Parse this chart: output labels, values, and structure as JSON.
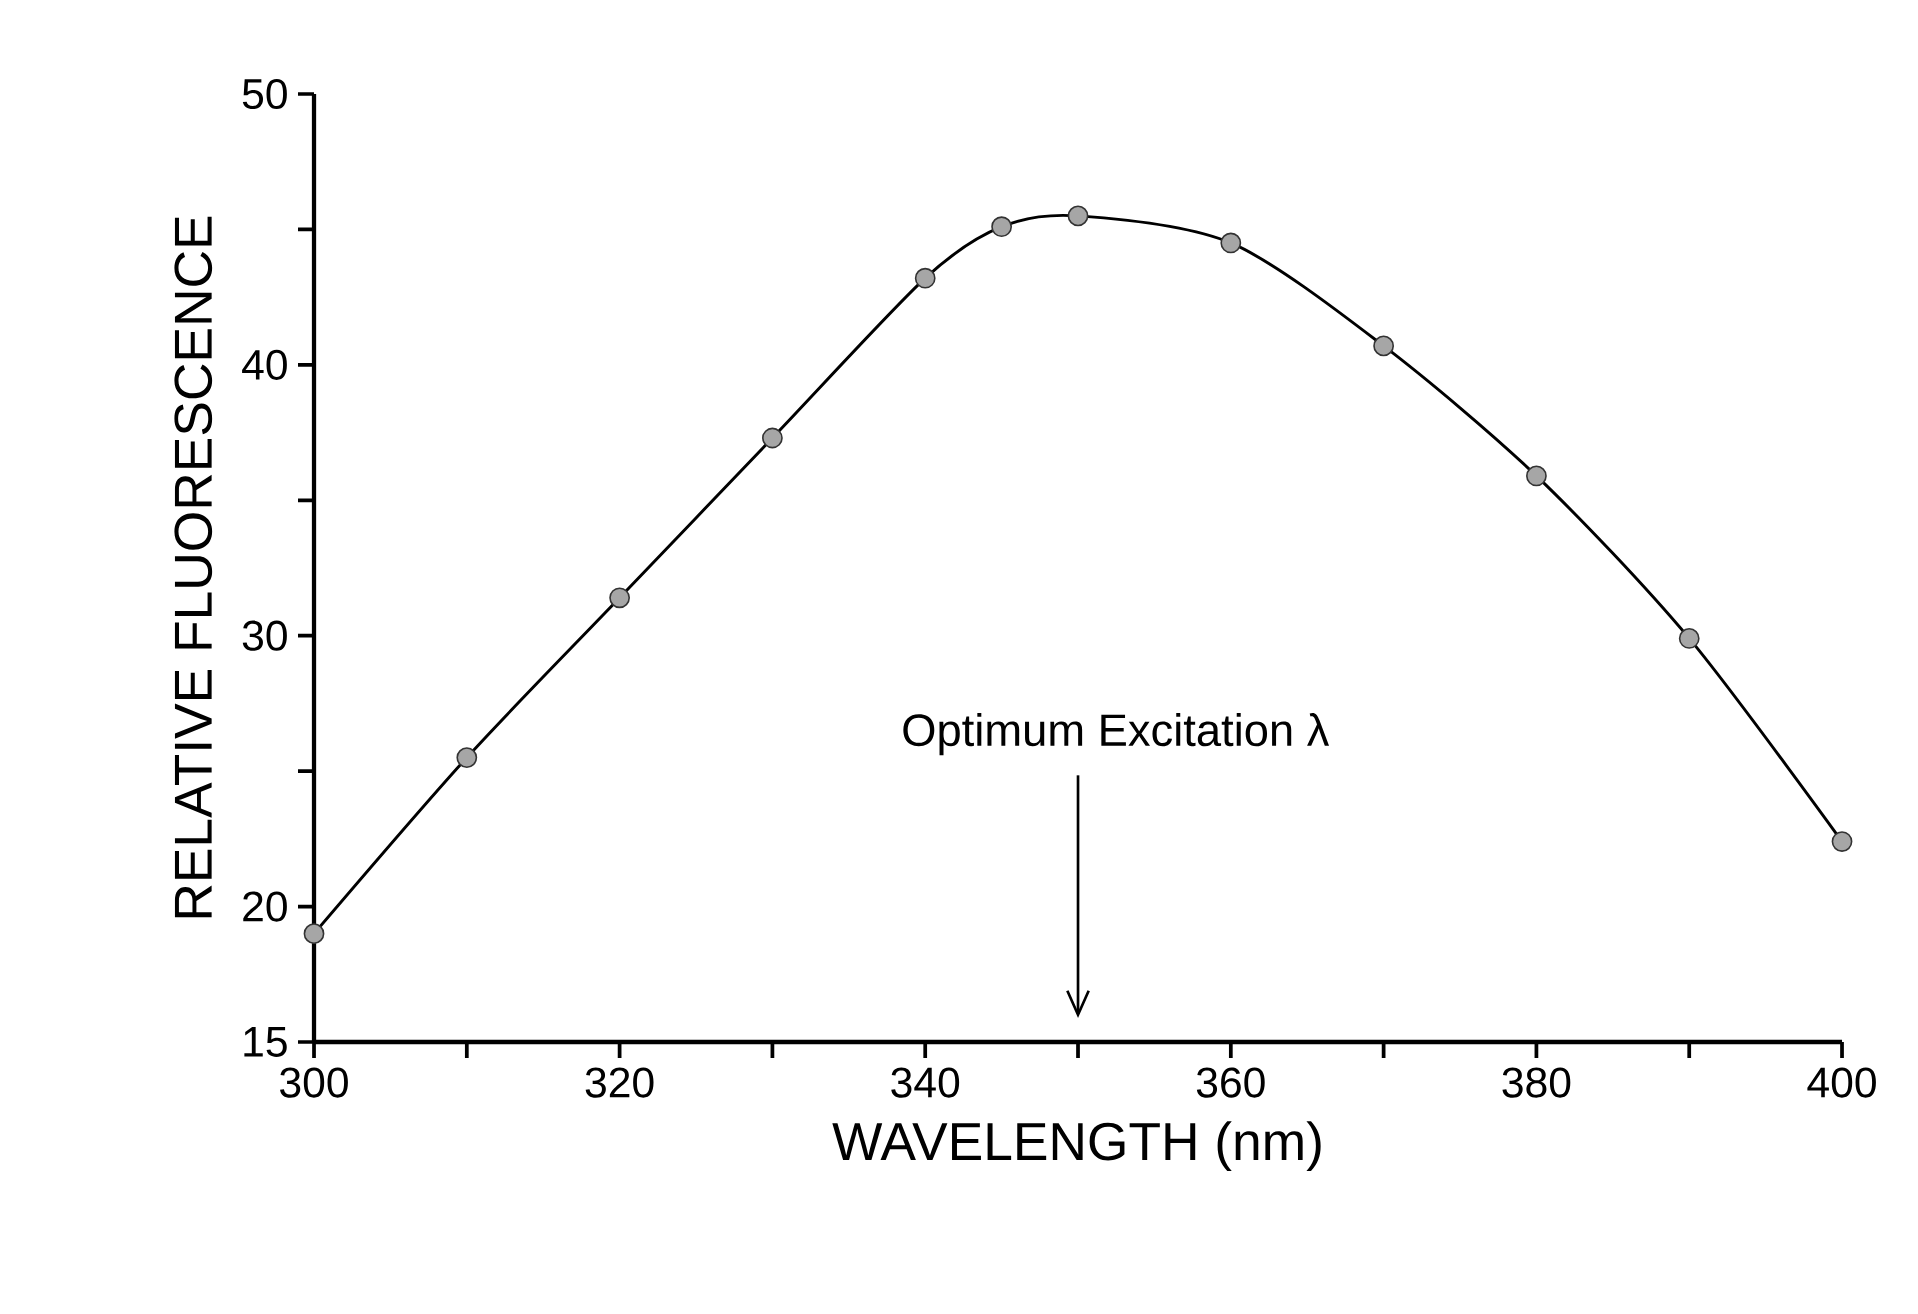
{
  "chart_data": {
    "type": "line",
    "xlabel": "WAVELENGTH   (nm)",
    "ylabel": "RELATIVE   FLUORESCENCE",
    "x": [
      300,
      310,
      320,
      330,
      340,
      345,
      350,
      360,
      370,
      380,
      390,
      400
    ],
    "series": [
      {
        "color": "#000000",
        "values": [
          19.0,
          25.5,
          31.4,
          37.3,
          43.2,
          45.1,
          45.5,
          44.5,
          40.7,
          35.9,
          29.9,
          22.4
        ]
      }
    ],
    "marker": "circle",
    "line_style": "solid",
    "grid": false,
    "legend": false,
    "xlim": [
      300,
      400
    ],
    "ylim": [
      15,
      50
    ],
    "xticks": [
      300,
      {
        "value": 310,
        "label": null
      },
      320,
      {
        "value": 330,
        "label": null
      },
      340,
      {
        "value": 350,
        "label": null
      },
      360,
      {
        "value": 370,
        "label": null
      },
      380,
      {
        "value": 390,
        "label": null
      },
      400
    ],
    "yticks": [
      15,
      20,
      {
        "value": 25,
        "label": null
      },
      30,
      {
        "value": 35,
        "label": null
      },
      40,
      {
        "value": 45,
        "label": null
      },
      50
    ],
    "annotations": [
      "Optimum  Excitation  λ"
    ]
  }
}
